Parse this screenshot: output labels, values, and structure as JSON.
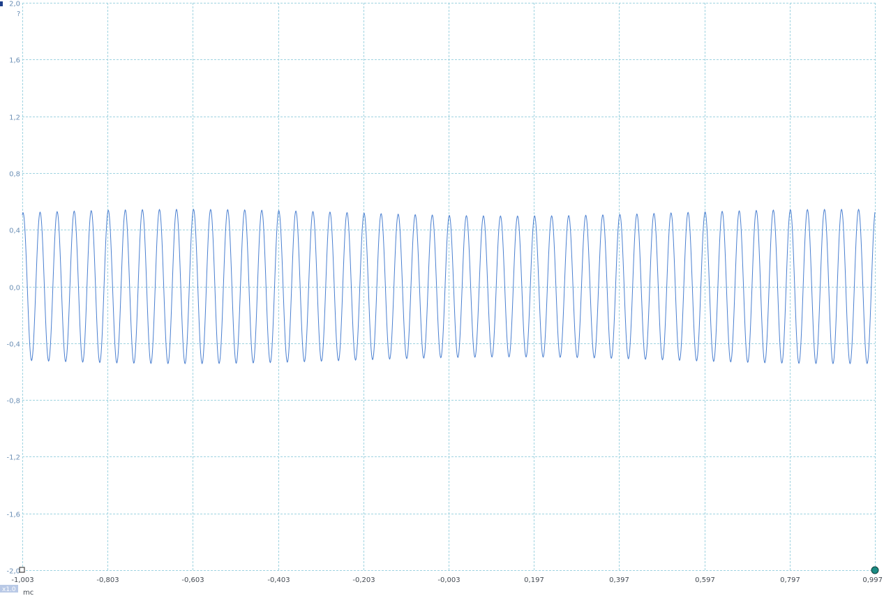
{
  "chart_data": {
    "type": "line",
    "title": "",
    "xlabel": "",
    "ylabel": "",
    "x_unit": "mc",
    "y_unit": "?",
    "xlim": [
      -1.003,
      0.997
    ],
    "ylim": [
      -2.0,
      2.0
    ],
    "x_ticks": [
      "-1,003",
      "-0,803",
      "-0,603",
      "-0,403",
      "-0,203",
      "-0,003",
      "0,197",
      "0,397",
      "0,597",
      "0,797",
      "0,997"
    ],
    "y_ticks": [
      "2,0",
      "1,6",
      "1,2",
      "0,8",
      "0,4",
      "0,0",
      "-0,4",
      "-0,8",
      "-1,2",
      "-1,6",
      "-2,0"
    ],
    "grid": true,
    "series": [
      {
        "name": "",
        "color": "#4a7fd0",
        "waveform": "sine",
        "cycles": 50,
        "amplitude": 0.52,
        "offset": 0.0
      }
    ],
    "scale_badge": "x1.0"
  }
}
